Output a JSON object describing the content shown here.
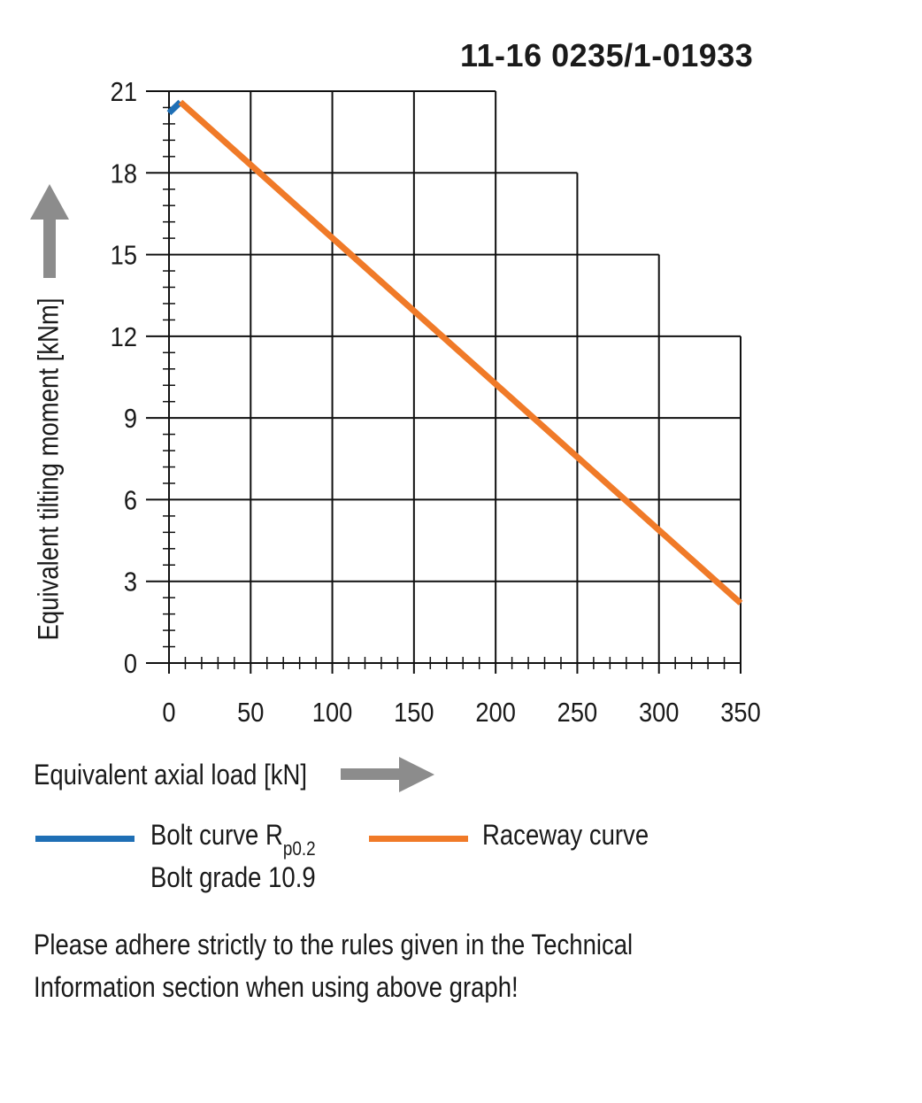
{
  "title": "11-16 0235/1-01933",
  "chart_data": {
    "type": "line",
    "xlabel": "Equivalent axial load [kN]",
    "ylabel": "Equivalent tilting moment [kNm]",
    "xlim": [
      0,
      350
    ],
    "ylim": [
      0,
      21
    ],
    "x_ticks": [
      0,
      50,
      100,
      150,
      200,
      250,
      300,
      350
    ],
    "y_ticks": [
      0,
      3,
      6,
      9,
      12,
      15,
      18,
      21
    ],
    "grid": true,
    "series": [
      {
        "name": "Bolt curve",
        "color": "#1f6fb5",
        "x": [
          0,
          7
        ],
        "y": [
          20.2,
          20.6
        ]
      },
      {
        "name": "Raceway curve",
        "color": "#f07a28",
        "x": [
          7,
          350
        ],
        "y": [
          20.6,
          2.2
        ]
      }
    ]
  },
  "legend": {
    "bolt_label": "Bolt curve  R",
    "bolt_subscript": "p0.2",
    "bolt_grade": "Bolt grade 10.9",
    "raceway_label": "Raceway curve"
  },
  "note_line1": "Please adhere strictly to the rules given in the Technical",
  "note_line2": "Information section when using above graph!",
  "arrow_color": "#8c8c8c"
}
